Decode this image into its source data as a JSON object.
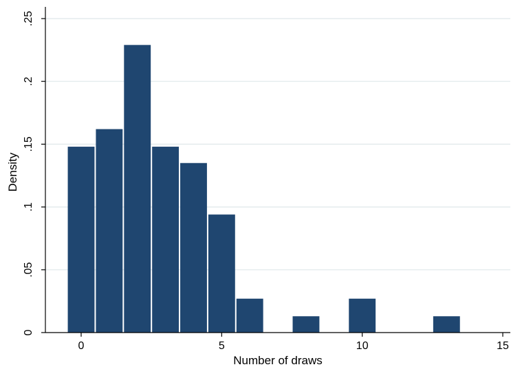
{
  "chart_data": {
    "type": "bar",
    "xlabel": "Number of draws",
    "ylabel": "Density",
    "xlim": [
      -1.5,
      15.2
    ],
    "ylim": [
      0,
      0.25
    ],
    "x_ticks": [
      0,
      5,
      10,
      15
    ],
    "x_tick_labels": [
      "0",
      "5",
      "10",
      "15"
    ],
    "y_ticks": [
      0,
      0.05,
      0.1,
      0.15,
      0.2,
      0.25
    ],
    "y_tick_labels": [
      "0",
      ".05",
      ".1",
      ".15",
      ".2",
      ".25"
    ],
    "grid": true,
    "bar_width": 1,
    "x": [
      0,
      1,
      2,
      3,
      4,
      5,
      6,
      8,
      10,
      13
    ],
    "values": [
      0.148,
      0.162,
      0.229,
      0.148,
      0.135,
      0.094,
      0.027,
      0.013,
      0.027,
      0.013
    ],
    "colors": {
      "bar": "#1f4670",
      "bar_edge": "#ffffff",
      "grid": "#dfe8ea",
      "axis": "#000000"
    }
  }
}
